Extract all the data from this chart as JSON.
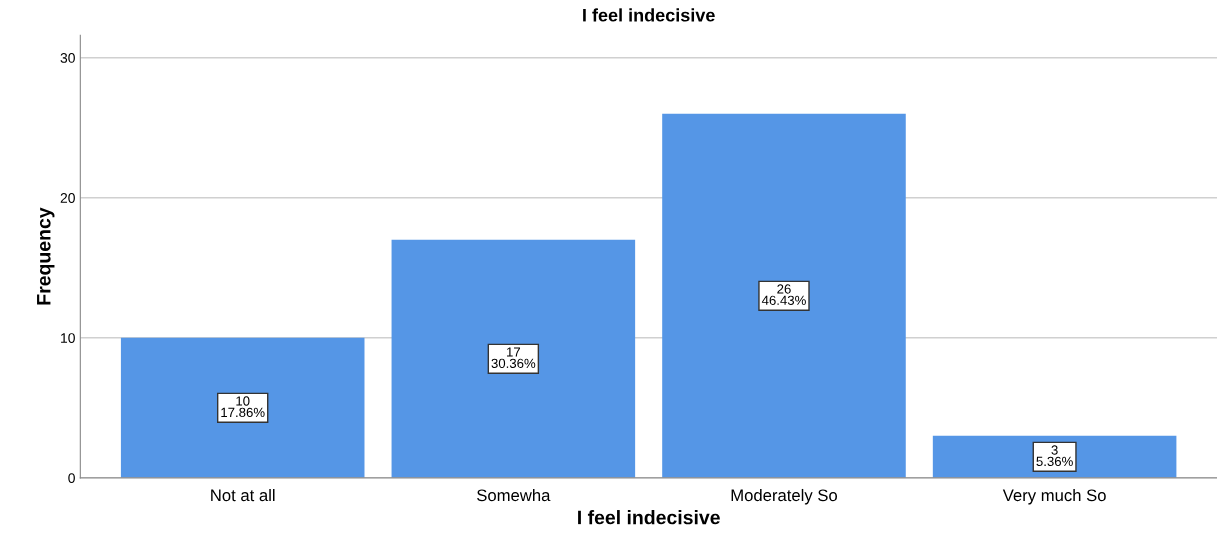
{
  "chart_data": {
    "type": "bar",
    "title": "I feel indecisive",
    "xlabel": "I feel indecisive",
    "ylabel": "Frequency",
    "categories": [
      "Not at all",
      "Somewha",
      "Moderately So",
      "Very much So"
    ],
    "values": [
      10,
      17,
      26,
      3
    ],
    "color": "#5596e6",
    "value_labels": [
      "10\n17.86%",
      "17\n30.36%",
      "26\n46.43%",
      "3\n5.36%"
    ],
    "ylim": [
      0,
      31.6
    ],
    "yticks": [
      0,
      10,
      20,
      30
    ],
    "grid": "y",
    "legend": false
  }
}
